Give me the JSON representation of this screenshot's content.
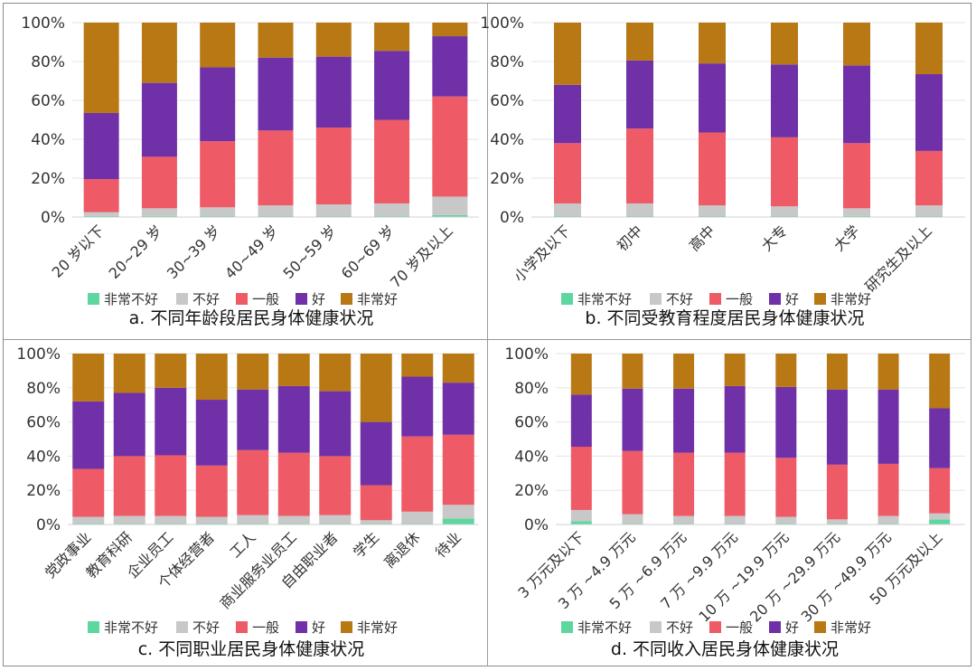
{
  "colors": {
    "非常不好": "#5ed6a0",
    "不好": "#c8c8c8",
    "一般": "#ee5a66",
    "好": "#7030a8",
    "非常好": "#b87814",
    "tick": "#333333",
    "grid": "#e6e6e6"
  },
  "chart_data": [
    {
      "type": "bar",
      "stacked": true,
      "title": "a. 不同年龄段居民身体健康状况",
      "categories": [
        "20 岁以下",
        "20~29 岁",
        "30~39 岁",
        "40~49 岁",
        "50~59 岁",
        "60~69 岁",
        "70 岁及以上"
      ],
      "yticks": [
        "0%",
        "20%",
        "40%",
        "60%",
        "80%",
        "100%"
      ],
      "ylim": [
        0,
        100
      ],
      "legend": [
        "非常不好",
        "不好",
        "一般",
        "好",
        "非常好"
      ],
      "series": [
        {
          "name": "非常不好",
          "values": [
            0.5,
            0.5,
            0.5,
            0.5,
            0.5,
            0.5,
            1
          ]
        },
        {
          "name": "不好",
          "values": [
            2,
            4,
            4.5,
            5.5,
            6,
            6.5,
            9.5
          ]
        },
        {
          "name": "一般",
          "values": [
            17,
            26.5,
            34,
            38.5,
            39.5,
            43,
            51.5
          ]
        },
        {
          "name": "好",
          "values": [
            34,
            38,
            38,
            37.5,
            36.5,
            35.5,
            31
          ]
        },
        {
          "name": "非常好",
          "values": [
            46.5,
            31,
            23,
            18,
            17.5,
            14.5,
            7
          ]
        }
      ]
    },
    {
      "type": "bar",
      "stacked": true,
      "title": "b. 不同受教育程度居民身体健康状况",
      "categories": [
        "小学及以下",
        "初中",
        "高中",
        "大专",
        "大学",
        "研究生及以上"
      ],
      "yticks": [
        "0%",
        "20%",
        "40%",
        "60%",
        "80%",
        "100%"
      ],
      "ylim": [
        0,
        100
      ],
      "legend": [
        "非常不好",
        "不好",
        "一般",
        "好",
        "非常好"
      ],
      "series": [
        {
          "name": "非常不好",
          "values": [
            0.5,
            0.5,
            0.5,
            0.5,
            0.5,
            0.5
          ]
        },
        {
          "name": "不好",
          "values": [
            6.5,
            6.5,
            5.5,
            5,
            4,
            5.5
          ]
        },
        {
          "name": "一般",
          "values": [
            31,
            38.5,
            37.5,
            35.5,
            33.5,
            28
          ]
        },
        {
          "name": "好",
          "values": [
            30,
            35,
            35.5,
            37.5,
            40,
            39.5
          ]
        },
        {
          "name": "非常好",
          "values": [
            32,
            19.5,
            21,
            21.5,
            22,
            26.5
          ]
        }
      ]
    },
    {
      "type": "bar",
      "stacked": true,
      "title": "c. 不同职业居民身体健康状况",
      "categories": [
        "党政事业",
        "教育科研",
        "企业员工",
        "个体经营者",
        "工人",
        "商业服务业员工",
        "自由职业者",
        "学生",
        "离退休",
        "待业"
      ],
      "yticks": [
        "0%",
        "20%",
        "40%",
        "60%",
        "80%",
        "100%"
      ],
      "ylim": [
        0,
        100
      ],
      "legend": [
        "非常不好",
        "不好",
        "一般",
        "好",
        "非常好"
      ],
      "series": [
        {
          "name": "非常不好",
          "values": [
            0.5,
            0.5,
            0.5,
            0.5,
            0.5,
            0.5,
            0.5,
            0.5,
            0.5,
            3.5
          ]
        },
        {
          "name": "不好",
          "values": [
            4,
            4.5,
            4.5,
            4,
            5,
            4.5,
            5,
            2,
            7,
            8
          ]
        },
        {
          "name": "一般",
          "values": [
            28,
            35,
            35.5,
            30,
            38,
            37,
            34.5,
            20.5,
            44,
            41
          ]
        },
        {
          "name": "好",
          "values": [
            39.5,
            37,
            39.5,
            38.5,
            35.5,
            39,
            38,
            37,
            35,
            30.5
          ]
        },
        {
          "name": "非常好",
          "values": [
            28,
            23,
            20,
            27,
            21,
            19,
            22,
            40,
            13.5,
            17
          ]
        }
      ]
    },
    {
      "type": "bar",
      "stacked": true,
      "title": "d. 不同收入居民身体健康状况",
      "categories": [
        "3 万元及以下",
        "3 万 ~4.9 万元",
        "5 万 ~6.9 万元",
        "7 万 ~9.9 万元",
        "10 万 ~19.9 万元",
        "20 万 ~29.9 万元",
        "30 万 ~49.9 万元",
        "50 万元及以上"
      ],
      "yticks": [
        "0%",
        "20%",
        "40%",
        "60%",
        "80%",
        "100%"
      ],
      "ylim": [
        0,
        100
      ],
      "legend": [
        "非常不好",
        "不好",
        "一般",
        "好",
        "非常好"
      ],
      "series": [
        {
          "name": "非常不好",
          "values": [
            2,
            0.5,
            0.5,
            0.5,
            0.5,
            0.5,
            0.5,
            3
          ]
        },
        {
          "name": "不好",
          "values": [
            6.5,
            5.5,
            4.5,
            4.5,
            4,
            2.5,
            4.5,
            3.5
          ]
        },
        {
          "name": "一般",
          "values": [
            37,
            37,
            37,
            37,
            34.5,
            32,
            30.5,
            26.5
          ]
        },
        {
          "name": "好",
          "values": [
            30.5,
            36.5,
            37.5,
            39,
            41.5,
            44,
            43.5,
            35
          ]
        },
        {
          "name": "非常好",
          "values": [
            24,
            20.5,
            20.5,
            19,
            19.5,
            21,
            21,
            32
          ]
        }
      ]
    }
  ]
}
